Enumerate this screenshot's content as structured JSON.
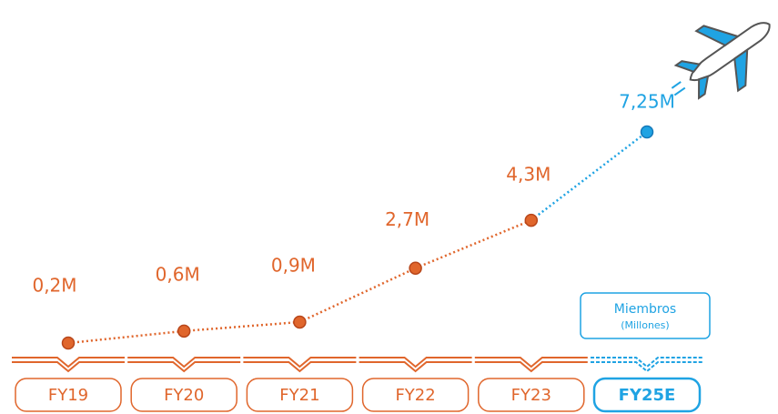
{
  "chart_data": {
    "type": "line",
    "categories": [
      "FY19",
      "FY20",
      "FY21",
      "FY22",
      "FY23",
      "FY25E"
    ],
    "values": [
      0.2,
      0.6,
      0.9,
      2.7,
      4.3,
      7.25
    ],
    "value_labels": [
      "0,2M",
      "0,6M",
      "0,9M",
      "2,7M",
      "4,3M",
      "7,25M"
    ],
    "colors": [
      "#e0662c",
      "#e0662c",
      "#e0662c",
      "#e0662c",
      "#e0662c",
      "#1fa3e3"
    ],
    "legend": {
      "title": "Miembros",
      "subtitle": "(Millones)"
    }
  }
}
